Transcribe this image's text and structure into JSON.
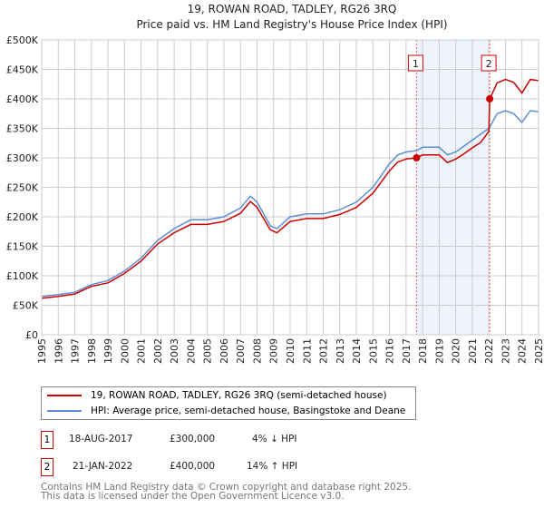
{
  "chart_data": {
    "type": "line",
    "title": "19, ROWAN ROAD, TADLEY, RG26 3RQ",
    "subtitle": "Price paid vs. HM Land Registry's House Price Index (HPI)",
    "xlim": [
      1995,
      2025
    ],
    "ylim": [
      0,
      500000
    ],
    "x_ticks": [
      "1995",
      "1996",
      "1997",
      "1998",
      "1999",
      "2000",
      "2001",
      "2002",
      "2003",
      "2004",
      "2005",
      "2006",
      "2007",
      "2008",
      "2009",
      "2010",
      "2011",
      "2012",
      "2013",
      "2014",
      "2015",
      "2016",
      "2017",
      "2018",
      "2019",
      "2020",
      "2021",
      "2022",
      "2023",
      "2024",
      "2025"
    ],
    "y_ticks": [
      "£0",
      "£50K",
      "£100K",
      "£150K",
      "£200K",
      "£250K",
      "£300K",
      "£350K",
      "£400K",
      "£450K",
      "£500K"
    ],
    "grid": true,
    "shaded_range": [
      2017.63,
      2022.05
    ],
    "series": [
      {
        "name": "19, ROWAN ROAD, TADLEY, RG26 3RQ (semi-detached house)",
        "color": "#cc0000",
        "x": [
          1995,
          1996,
          1997,
          1998,
          1999,
          2000,
          2001,
          2002,
          2003,
          2004,
          2005,
          2006,
          2007,
          2007.6,
          2008,
          2008.8,
          2009.2,
          2010,
          2011,
          2012,
          2013,
          2014,
          2015,
          2016,
          2016.5,
          2017,
          2017.63,
          2018,
          2019,
          2019.5,
          2020,
          2020.5,
          2021,
          2021.5,
          2022.0,
          2022.05,
          2022.5,
          2023,
          2023.5,
          2024,
          2024.5,
          2025
        ],
        "y": [
          62000,
          65000,
          69000,
          82000,
          88000,
          104000,
          125000,
          154000,
          173000,
          187000,
          187000,
          192000,
          206000,
          226000,
          216000,
          178000,
          173000,
          192000,
          197000,
          197000,
          204000,
          216000,
          240000,
          278000,
          293000,
          298000,
          300000,
          305000,
          305000,
          292000,
          298000,
          307000,
          317000,
          326000,
          345000,
          400000,
          427000,
          433000,
          428000,
          410000,
          433000,
          431000
        ]
      },
      {
        "name": "HPI: Average price, semi-detached house, Basingstoke and Deane",
        "color": "#5b8fd4",
        "x": [
          1995,
          1996,
          1997,
          1998,
          1999,
          2000,
          2001,
          2002,
          2003,
          2004,
          2005,
          2006,
          2007,
          2007.6,
          2008,
          2008.8,
          2009.2,
          2010,
          2011,
          2012,
          2013,
          2014,
          2015,
          2016,
          2016.5,
          2017,
          2017.63,
          2018,
          2019,
          2019.5,
          2020,
          2020.5,
          2021,
          2021.5,
          2022.0,
          2022.05,
          2022.5,
          2023,
          2023.5,
          2024,
          2024.5,
          2025
        ],
        "y": [
          65000,
          68000,
          72000,
          85000,
          92000,
          108000,
          130000,
          160000,
          180000,
          195000,
          195000,
          200000,
          215000,
          235000,
          225000,
          185000,
          180000,
          200000,
          205000,
          205000,
          212000,
          225000,
          250000,
          290000,
          305000,
          310000,
          312000,
          318000,
          318000,
          305000,
          310000,
          320000,
          330000,
          340000,
          350000,
          352000,
          375000,
          380000,
          375000,
          360000,
          380000,
          378000
        ]
      }
    ],
    "sales": [
      {
        "id": "1",
        "x": 2017.63,
        "y": 300000,
        "date": "18-AUG-2017",
        "price": "£300,000",
        "hpi": "4% ↓ HPI"
      },
      {
        "id": "2",
        "x": 2022.05,
        "y": 400000,
        "date": "21-JAN-2022",
        "price": "£400,000",
        "hpi": "14% ↑ HPI"
      }
    ]
  },
  "footer": {
    "line1": "Contains HM Land Registry data © Crown copyright and database right 2025.",
    "line2": "This data is licensed under the Open Government Licence v3.0."
  }
}
